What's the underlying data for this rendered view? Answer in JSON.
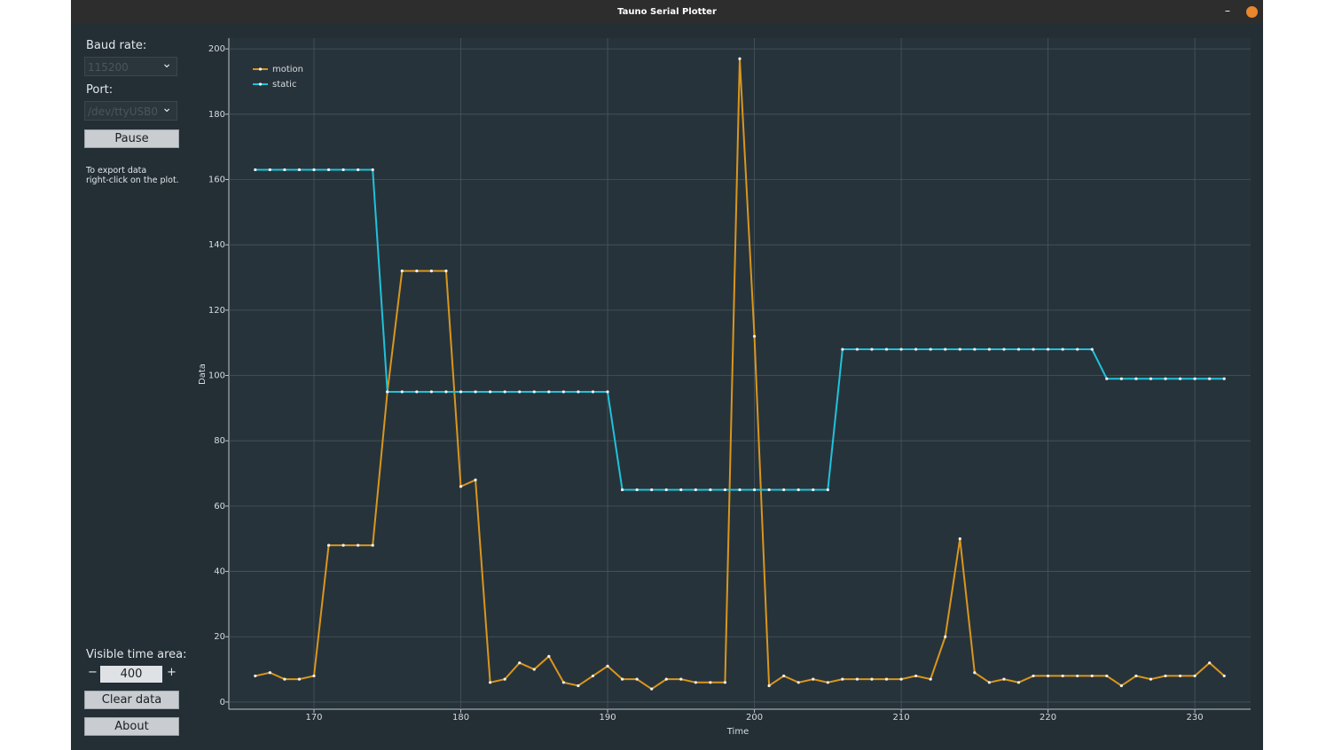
{
  "window": {
    "title": "Tauno Serial Plotter"
  },
  "sidebar": {
    "baud_label": "Baud rate:",
    "baud_value": "115200",
    "port_label": "Port:",
    "port_value": "/dev/ttyUSB0",
    "pause": "Pause",
    "export_note": [
      "To export data",
      "right-click on the plot."
    ],
    "time_area_label": "Visible time area:",
    "minus": "−",
    "time_area_value": "400",
    "plus": "+",
    "clear": "Clear data",
    "about": "About"
  },
  "chart_data": {
    "type": "line",
    "x_label": "Time",
    "y_label": "Data",
    "x": [
      166,
      167,
      168,
      169,
      170,
      171,
      172,
      173,
      174,
      175,
      176,
      177,
      178,
      179,
      180,
      181,
      182,
      183,
      184,
      185,
      186,
      187,
      188,
      189,
      190,
      191,
      192,
      193,
      194,
      195,
      196,
      197,
      198,
      199,
      200,
      201,
      202,
      203,
      204,
      205,
      206,
      207,
      208,
      209,
      210,
      211,
      212,
      213,
      214,
      215,
      216,
      217,
      218,
      219,
      220,
      221,
      222,
      223,
      224,
      225,
      226,
      227,
      228,
      229,
      230,
      231,
      232
    ],
    "series": [
      {
        "name": "motion",
        "color": "#d9961e",
        "values": [
          8,
          9,
          7,
          7,
          8,
          48,
          48,
          48,
          48,
          95,
          132,
          132,
          132,
          132,
          66,
          68,
          6,
          7,
          12,
          10,
          14,
          6,
          5,
          8,
          11,
          7,
          7,
          4,
          7,
          7,
          6,
          6,
          6,
          197,
          112,
          5,
          8,
          6,
          7,
          6,
          7,
          7,
          7,
          7,
          7,
          8,
          7,
          20,
          50,
          9,
          6,
          7,
          6,
          8,
          8,
          8,
          8,
          8,
          8,
          5,
          8,
          7,
          8,
          8,
          8,
          12,
          8
        ]
      },
      {
        "name": "static",
        "color": "#1fc2db",
        "values": [
          163,
          163,
          163,
          163,
          163,
          163,
          163,
          163,
          163,
          95,
          95,
          95,
          95,
          95,
          95,
          95,
          95,
          95,
          95,
          95,
          95,
          95,
          95,
          95,
          95,
          65,
          65,
          65,
          65,
          65,
          65,
          65,
          65,
          65,
          65,
          65,
          65,
          65,
          65,
          65,
          108,
          108,
          108,
          108,
          108,
          108,
          108,
          108,
          108,
          108,
          108,
          108,
          108,
          108,
          108,
          108,
          108,
          108,
          99,
          99,
          99,
          99,
          99,
          99,
          99,
          99,
          99
        ]
      }
    ],
    "xlim": [
      164.2,
      233.8
    ],
    "ylim": [
      -2.2,
      203.3
    ],
    "xticks": [
      170,
      180,
      190,
      200,
      210,
      220,
      230
    ],
    "yticks": [
      0,
      20,
      40,
      60,
      80,
      100,
      120,
      140,
      160,
      180,
      200
    ],
    "grid": true,
    "legend": "upper-left"
  }
}
